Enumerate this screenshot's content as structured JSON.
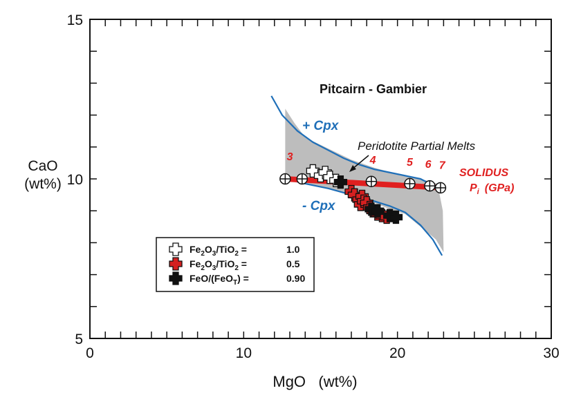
{
  "chart_data": {
    "type": "scatter",
    "title": "Pitcairn   - Gambier",
    "xlabel": "MgO   (wt%)",
    "ylabel": [
      "CaO",
      "(wt%)"
    ],
    "xlim": [
      0,
      30
    ],
    "ylim": [
      5,
      15
    ],
    "xticks": [
      0,
      10,
      20,
      30
    ],
    "yticks": [
      5,
      10,
      15
    ],
    "xtick_labels": [
      "0",
      "10",
      "20",
      "30"
    ],
    "ytick_labels": [
      "5",
      "10",
      "15"
    ],
    "minor_x_step": 1,
    "minor_y_step": 1,
    "grid": false,
    "colors": {
      "cpx_curve": "#1f6fb8",
      "melt_region": "#bdbdbd",
      "solidus": "#e02020",
      "marker_white": "#ffffff",
      "marker_red": "#d42020",
      "marker_black": "#111111"
    },
    "annotations": {
      "plus_cpx": "+  Cpx",
      "minus_cpx": "-  Cpx",
      "peridotite": "Peridotite Partial Melts",
      "solidus": "SOLIDUS",
      "pressure_label": "P",
      "pressure_sub": "i",
      "pressure_unit": "(GPa)"
    },
    "pressure_labels": [
      {
        "text": "3",
        "x": 12.8,
        "y": 10.45
      },
      {
        "text": "4",
        "x": 18.2,
        "y": 10.35
      },
      {
        "text": "5",
        "x": 20.6,
        "y": 10.28
      },
      {
        "text": "6",
        "x": 21.8,
        "y": 10.22
      },
      {
        "text": "7",
        "x": 22.7,
        "y": 10.18
      }
    ],
    "upper_cpx_curve": {
      "x": [
        11.8,
        12.5,
        13.5,
        14.5,
        15.5,
        16.5,
        17.5,
        18.5,
        19.5,
        20.5,
        21.5,
        22.5,
        22.9
      ],
      "y": [
        12.6,
        12.0,
        11.5,
        11.15,
        10.9,
        10.65,
        10.45,
        10.3,
        10.2,
        10.1,
        10.0,
        9.75,
        9.6
      ]
    },
    "lower_cpx_curve": {
      "x": [
        12.7,
        14,
        15.5,
        17,
        18.5,
        19.5,
        20.5,
        21.5,
        22.3,
        22.9
      ],
      "y": [
        10.0,
        9.85,
        9.7,
        9.5,
        9.3,
        9.15,
        8.95,
        8.55,
        8.1,
        7.6
      ]
    },
    "melt_region": {
      "x": [
        12.7,
        12.7,
        13.3,
        14,
        15.5,
        17,
        18.5,
        20,
        21.5,
        22.6,
        22.95,
        23.0,
        22.5,
        21.5,
        20.5,
        19.5,
        18.5,
        17.0,
        15.5,
        14.0,
        12.7
      ],
      "y": [
        10.0,
        12.2,
        11.75,
        11.3,
        10.95,
        10.6,
        10.35,
        10.15,
        10.0,
        9.85,
        9.0,
        7.7,
        8.1,
        8.5,
        8.9,
        9.05,
        9.25,
        9.5,
        9.7,
        9.85,
        10.0
      ]
    },
    "solidus_line": {
      "x": [
        12.7,
        23.0
      ],
      "y": [
        10.0,
        9.72
      ]
    },
    "solidus_points": {
      "x": [
        12.7,
        13.8,
        18.3,
        20.8,
        22.1,
        22.8
      ],
      "y": [
        10.0,
        10.0,
        9.92,
        9.85,
        9.78,
        9.72
      ]
    },
    "series": [
      {
        "name": "Fe2O3/TiO2 =    1.0",
        "legend_value": "1.0",
        "marker": "white-cross",
        "x": [
          14.5,
          15.0,
          15.3,
          15.6,
          16.0
        ],
        "y": [
          10.25,
          10.1,
          10.2,
          10.05,
          9.95
        ]
      },
      {
        "name": "Fe2O3/TiO2 =    0.5",
        "legend_value": "0.5",
        "marker": "red-cross",
        "x": [
          17.0,
          17.2,
          17.5,
          17.6,
          17.7,
          17.8,
          18.0,
          18.2,
          18.4,
          18.7,
          19.0,
          19.3
        ],
        "y": [
          9.6,
          9.5,
          9.35,
          9.2,
          9.45,
          9.3,
          9.25,
          9.1,
          9.0,
          8.9,
          8.85,
          8.8
        ]
      },
      {
        "name": "FeO/(FeOT) =   0.90",
        "legend_value": "0.90",
        "marker": "black-cross",
        "x": [
          16.3,
          18.3,
          18.7,
          19.5,
          19.9
        ],
        "y": [
          9.9,
          9.05,
          9.0,
          8.85,
          8.8
        ]
      }
    ],
    "legend": {
      "placement": "bottom-left",
      "entries": [
        {
          "prefix": "Fe",
          "sub1": "2",
          "mid": "O",
          "sub2": "3",
          "rest": "/TiO",
          "sub3": "2",
          "eq": " =",
          "value": "1.0"
        },
        {
          "prefix": "Fe",
          "sub1": "2",
          "mid": "O",
          "sub2": "3",
          "rest": "/TiO",
          "sub3": "2",
          "eq": " =",
          "value": "0.5"
        },
        {
          "prefix": "FeO/(FeO",
          "sub1": "T",
          "mid": ")",
          "sub2": "",
          "rest": "",
          "sub3": "",
          "eq": " =",
          "value": "0.90"
        }
      ]
    }
  }
}
